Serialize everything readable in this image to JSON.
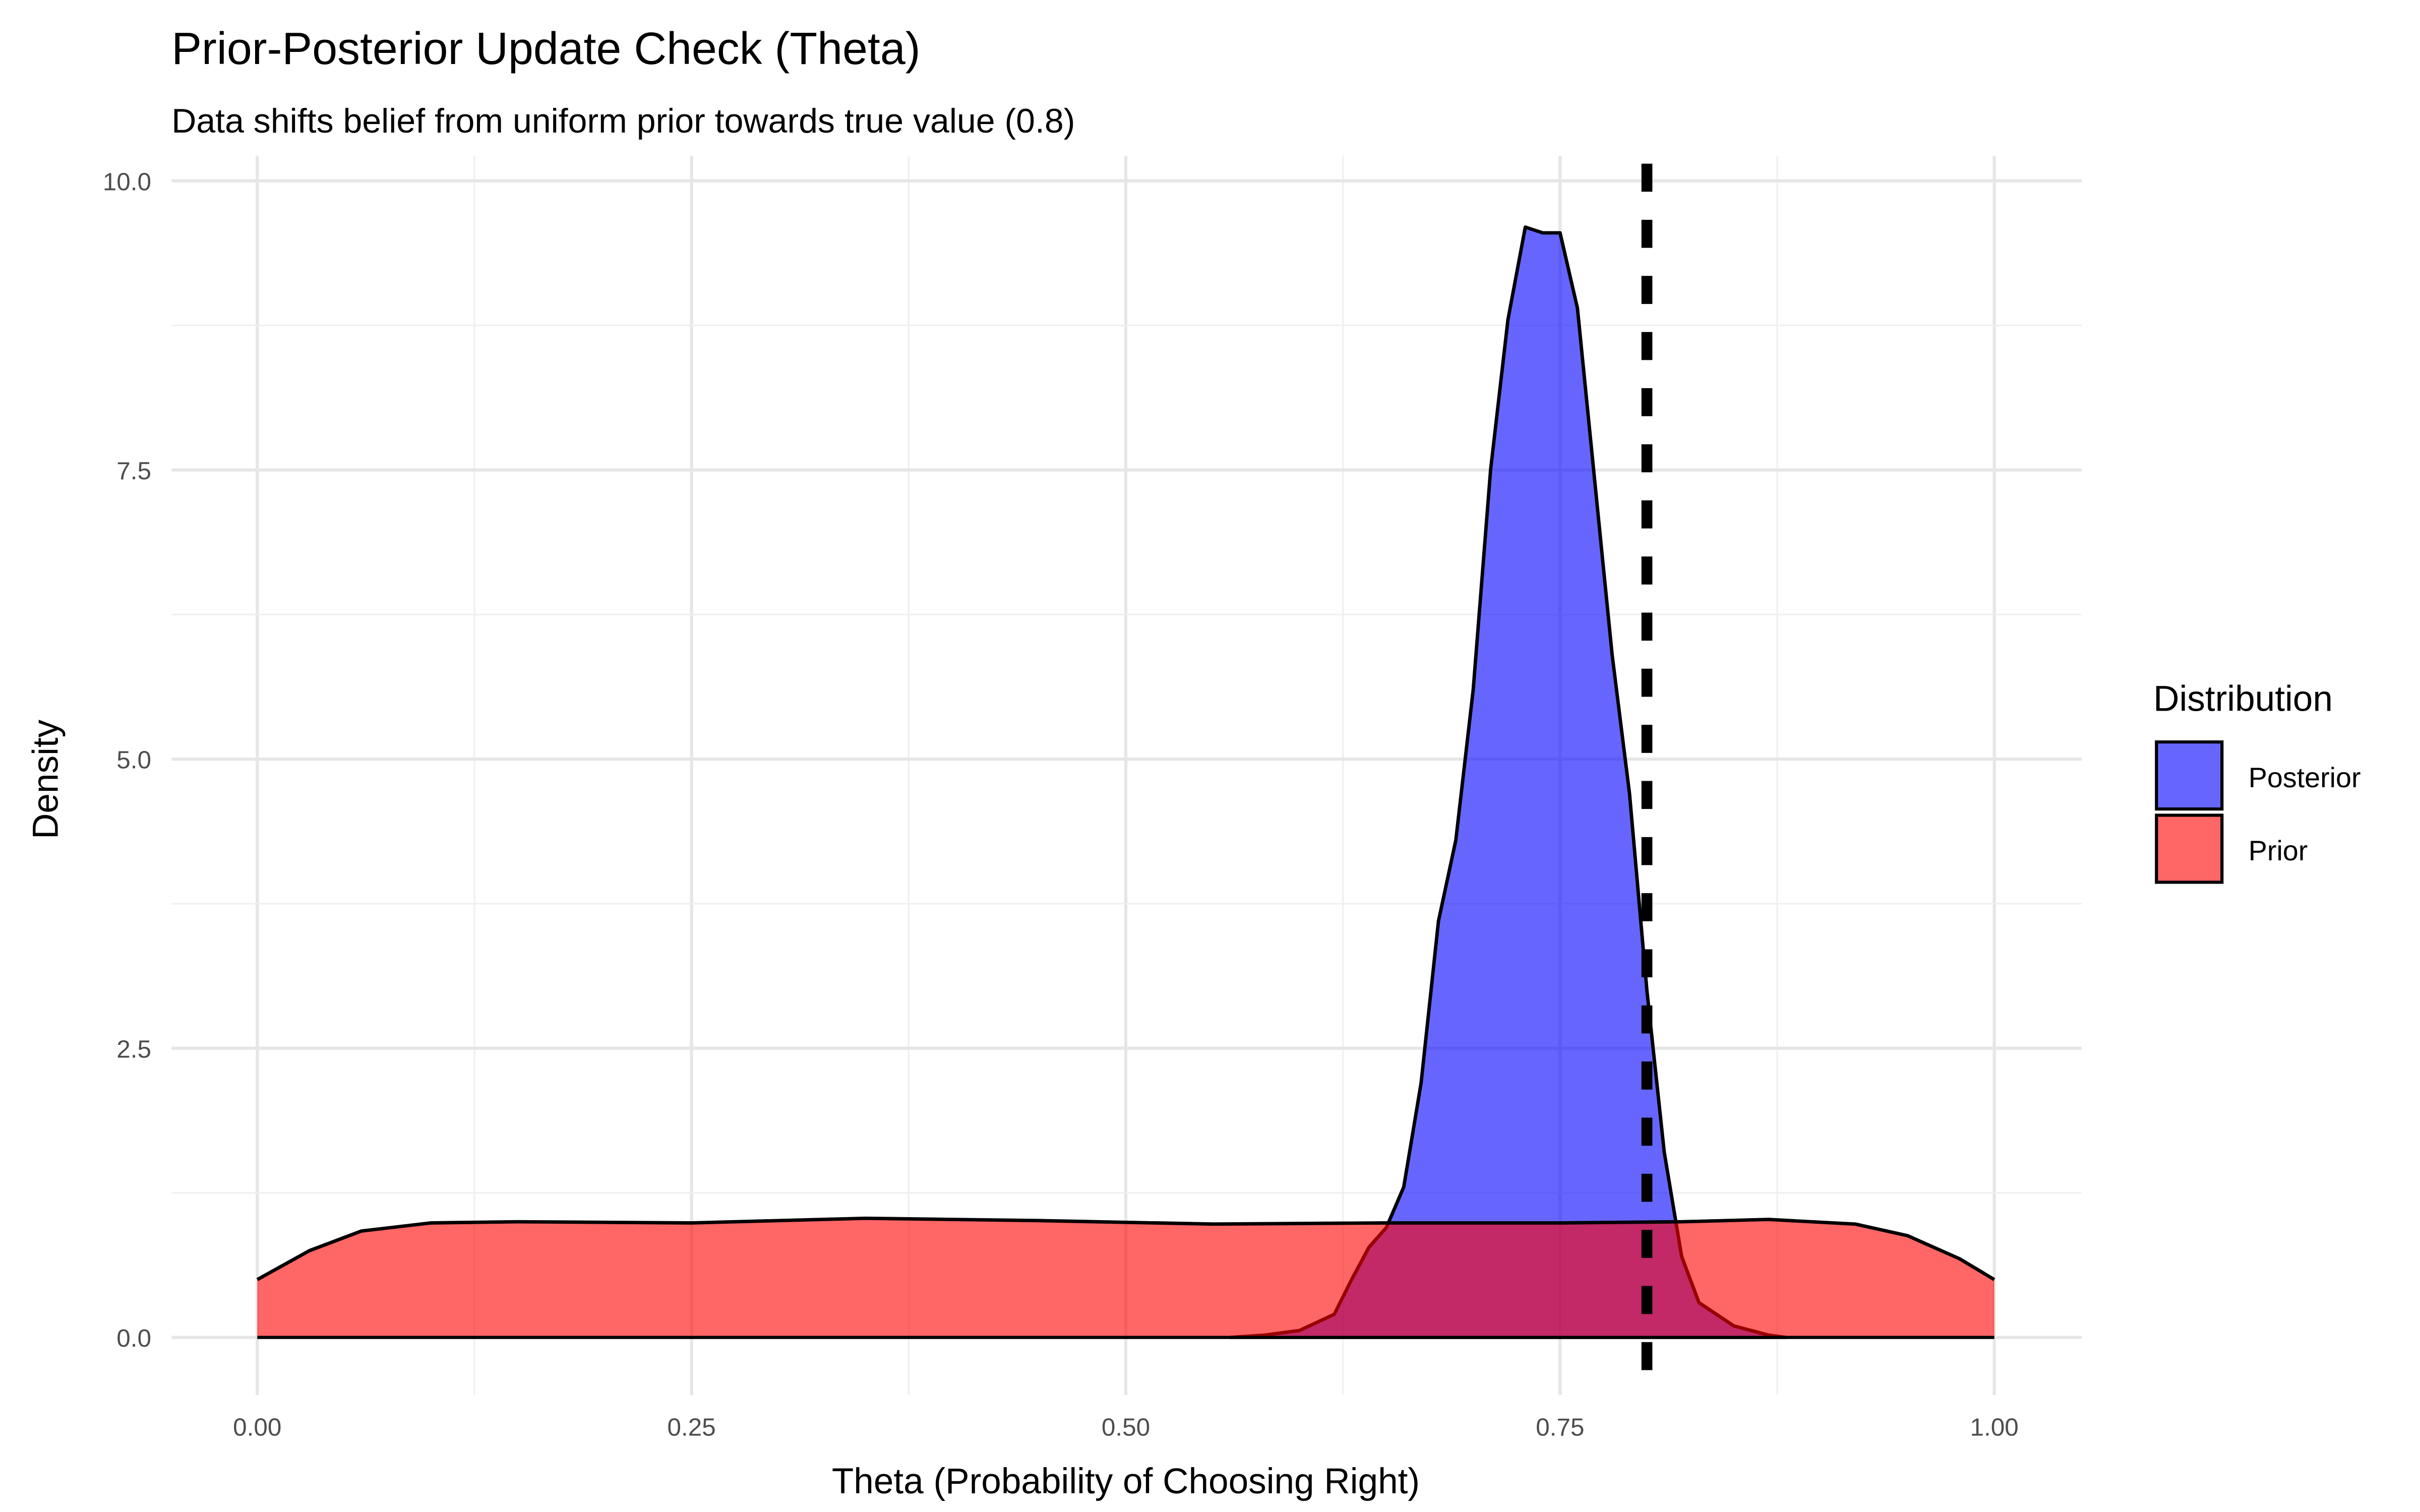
{
  "chart_data": {
    "type": "area",
    "title": "Prior-Posterior Update Check (Theta)",
    "subtitle": "Data shifts belief from uniform prior towards true value (0.8)",
    "xlabel": "Theta (Probability of Choosing Right)",
    "ylabel": "Density",
    "xlim": [
      0,
      1
    ],
    "ylim": [
      0,
      10
    ],
    "x_ticks": [
      "0.00",
      "0.25",
      "0.50",
      "0.75",
      "1.00"
    ],
    "y_ticks": [
      "0.0",
      "2.5",
      "5.0",
      "7.5",
      "10.0"
    ],
    "grid": true,
    "legend": {
      "title": "Distribution",
      "placement": "right",
      "entries": [
        "Posterior",
        "Prior"
      ]
    },
    "reference_line": {
      "x": 0.8,
      "style": "dashed",
      "color": "#000000"
    },
    "series": [
      {
        "name": "Posterior",
        "color": "#0000FF",
        "alpha": 0.6,
        "x": [
          0.56,
          0.58,
          0.6,
          0.62,
          0.63,
          0.64,
          0.65,
          0.66,
          0.67,
          0.68,
          0.69,
          0.7,
          0.71,
          0.72,
          0.73,
          0.74,
          0.75,
          0.76,
          0.77,
          0.78,
          0.79,
          0.8,
          0.81,
          0.82,
          0.83,
          0.85,
          0.87,
          0.88
        ],
        "y": [
          0,
          0.02,
          0.06,
          0.2,
          0.5,
          0.78,
          0.95,
          1.3,
          2.2,
          3.6,
          4.3,
          5.6,
          7.5,
          8.8,
          9.6,
          9.55,
          9.55,
          8.9,
          7.4,
          5.9,
          4.7,
          3.0,
          1.6,
          0.7,
          0.3,
          0.1,
          0.02,
          0
        ]
      },
      {
        "name": "Prior",
        "color": "#FF0000",
        "alpha": 0.6,
        "x": [
          0,
          0.03,
          0.06,
          0.1,
          0.15,
          0.25,
          0.35,
          0.45,
          0.55,
          0.65,
          0.75,
          0.82,
          0.87,
          0.92,
          0.95,
          0.98,
          1.0
        ],
        "y": [
          0.5,
          0.75,
          0.92,
          0.99,
          1.0,
          0.99,
          1.03,
          1.01,
          0.98,
          0.99,
          0.99,
          1.0,
          1.02,
          0.98,
          0.88,
          0.68,
          0.5
        ]
      }
    ]
  }
}
